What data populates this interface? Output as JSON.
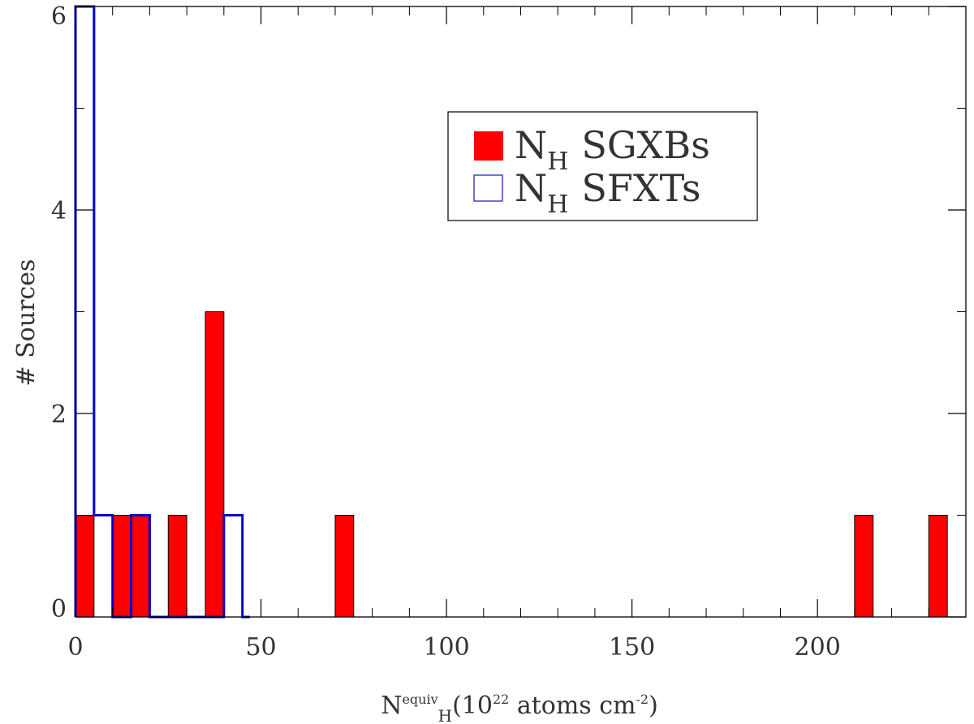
{
  "chart_data": {
    "type": "bar",
    "xlabel": {
      "base": "N",
      "sup": "equiv",
      "sub": "H",
      "rest": "(10",
      "exp": "22",
      "units": " atoms cm",
      "units_exp": "-2",
      "close": ")"
    },
    "ylabel": "# Sources",
    "xlim": [
      0,
      240
    ],
    "ylim": [
      0,
      6
    ],
    "x_ticks": [
      0,
      50,
      100,
      150,
      200
    ],
    "x_tick_labels": [
      "0",
      "50",
      "100",
      "150",
      "200"
    ],
    "x_minor_step": 10,
    "y_ticks": [
      0,
      2,
      4,
      6
    ],
    "y_tick_labels": [
      "0",
      "2",
      "4",
      "6"
    ],
    "y_minor_step": 1,
    "grid": false,
    "legend_position": "top-center-right",
    "series": [
      {
        "name": "SGXBs",
        "style": "filled",
        "color": "#ff0000",
        "bins": [
          {
            "x0": 0,
            "x1": 5,
            "count": 1
          },
          {
            "x0": 10,
            "x1": 15,
            "count": 1
          },
          {
            "x0": 15,
            "x1": 20,
            "count": 1
          },
          {
            "x0": 25,
            "x1": 30,
            "count": 1
          },
          {
            "x0": 35,
            "x1": 40,
            "count": 3
          },
          {
            "x0": 70,
            "x1": 75,
            "count": 1
          },
          {
            "x0": 210,
            "x1": 215,
            "count": 1
          },
          {
            "x0": 230,
            "x1": 235,
            "count": 1
          }
        ]
      },
      {
        "name": "SFXTs",
        "style": "step-outline",
        "color": "#0000cc",
        "bins": [
          {
            "x0": 0,
            "x1": 5,
            "count": 6
          },
          {
            "x0": 5,
            "x1": 10,
            "count": 1
          },
          {
            "x0": 10,
            "x1": 15,
            "count": 0
          },
          {
            "x0": 15,
            "x1": 20,
            "count": 1
          },
          {
            "x0": 20,
            "x1": 40,
            "count": 0
          },
          {
            "x0": 40,
            "x1": 45,
            "count": 1
          },
          {
            "x0": 45,
            "x1": 47,
            "count": 0
          }
        ]
      }
    ],
    "legend": [
      {
        "symbol": "filled",
        "color": "#ff0000",
        "label_base": "N",
        "label_sub": "H",
        "label_rest": "SGXBs"
      },
      {
        "symbol": "outline",
        "color": "#0000cc",
        "label_base": "N",
        "label_sub": "H",
        "label_rest": "SFXTs"
      }
    ]
  }
}
